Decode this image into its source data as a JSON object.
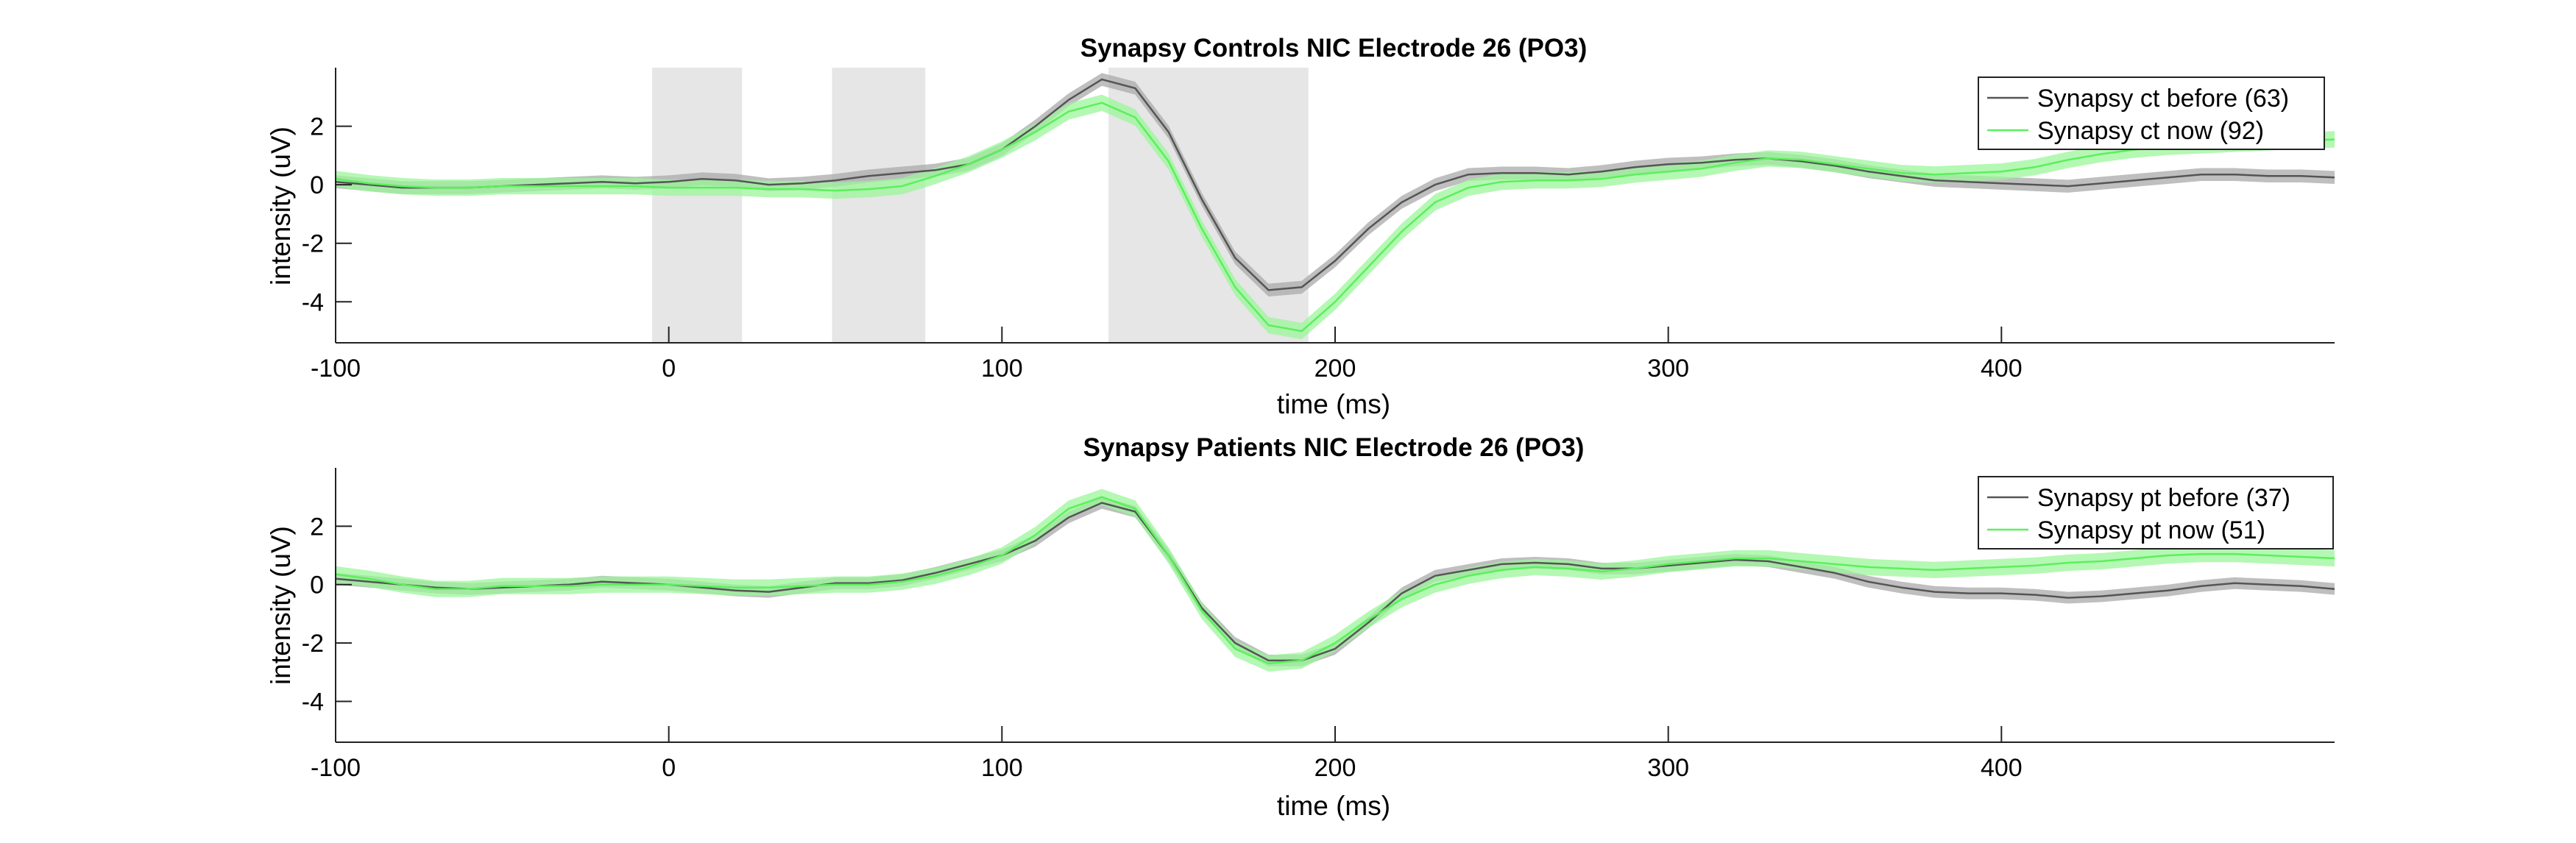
{
  "chart_data": [
    {
      "type": "line",
      "title": "Synapsy Controls NIC Electrode 26 (PO3)",
      "xlabel": "time (ms)",
      "ylabel": "intensity (uV)",
      "xlim": [
        -100,
        500
      ],
      "ylim": [
        -5.4,
        4
      ],
      "xticks": [
        -100,
        0,
        100,
        200,
        300,
        400
      ],
      "yticks": [
        -4,
        -2,
        0,
        2
      ],
      "grid": false,
      "legend_position": "top-right",
      "shaded_regions": [
        [
          -5,
          22
        ],
        [
          49,
          77
        ],
        [
          132,
          192
        ]
      ],
      "colors": {
        "before": "#555555",
        "now": "#5bf05b",
        "before_band": "#a9a9a9",
        "now_band": "#9bf59b",
        "region": "#e6e6e6"
      },
      "x": [
        -100,
        -90,
        -80,
        -70,
        -60,
        -50,
        -40,
        -30,
        -20,
        -10,
        0,
        10,
        20,
        30,
        40,
        50,
        60,
        70,
        80,
        90,
        100,
        110,
        120,
        130,
        140,
        150,
        160,
        170,
        180,
        190,
        200,
        210,
        220,
        230,
        240,
        250,
        260,
        270,
        280,
        290,
        300,
        310,
        320,
        330,
        340,
        350,
        360,
        370,
        380,
        390,
        400,
        410,
        420,
        430,
        440,
        450,
        460,
        470,
        480,
        490,
        500
      ],
      "series": [
        {
          "name": "Synapsy ct before (63)",
          "values": [
            0.1,
            0.0,
            -0.1,
            -0.1,
            -0.1,
            -0.05,
            0.0,
            0.05,
            0.1,
            0.05,
            0.1,
            0.2,
            0.15,
            0.0,
            0.05,
            0.15,
            0.3,
            0.4,
            0.5,
            0.7,
            1.2,
            2.0,
            2.9,
            3.6,
            3.3,
            1.8,
            -0.5,
            -2.5,
            -3.6,
            -3.5,
            -2.6,
            -1.5,
            -0.6,
            0.0,
            0.35,
            0.4,
            0.4,
            0.35,
            0.45,
            0.6,
            0.7,
            0.75,
            0.85,
            0.9,
            0.8,
            0.65,
            0.45,
            0.3,
            0.15,
            0.1,
            0.05,
            0.0,
            -0.05,
            0.05,
            0.15,
            0.25,
            0.35,
            0.35,
            0.3,
            0.3,
            0.25
          ],
          "band": 0.22
        },
        {
          "name": "Synapsy ct now (92)",
          "values": [
            0.2,
            0.05,
            -0.05,
            -0.1,
            -0.1,
            -0.05,
            -0.05,
            -0.05,
            -0.05,
            -0.05,
            -0.1,
            -0.1,
            -0.1,
            -0.15,
            -0.15,
            -0.2,
            -0.15,
            -0.05,
            0.3,
            0.7,
            1.2,
            1.8,
            2.5,
            2.8,
            2.3,
            0.8,
            -1.5,
            -3.5,
            -4.8,
            -5.0,
            -4.0,
            -2.8,
            -1.6,
            -0.6,
            -0.1,
            0.1,
            0.15,
            0.15,
            0.2,
            0.35,
            0.45,
            0.55,
            0.75,
            0.9,
            0.85,
            0.7,
            0.55,
            0.4,
            0.35,
            0.4,
            0.45,
            0.6,
            0.85,
            1.05,
            1.2,
            1.3,
            1.35,
            1.4,
            1.45,
            1.5,
            1.55
          ],
          "band": 0.28
        }
      ]
    },
    {
      "type": "line",
      "title": "Synapsy Patients NIC Electrode 26 (PO3)",
      "xlabel": "time (ms)",
      "ylabel": "intensity (uV)",
      "xlim": [
        -100,
        500
      ],
      "ylim": [
        -5.4,
        4
      ],
      "xticks": [
        -100,
        0,
        100,
        200,
        300,
        400
      ],
      "yticks": [
        -4,
        -2,
        0,
        2
      ],
      "grid": false,
      "legend_position": "top-right",
      "shaded_regions": [],
      "colors": {
        "before": "#555555",
        "now": "#5bf05b",
        "before_band": "#a9a9a9",
        "now_band": "#9bf59b"
      },
      "x": [
        -100,
        -90,
        -80,
        -70,
        -60,
        -50,
        -40,
        -30,
        -20,
        -10,
        0,
        10,
        20,
        30,
        40,
        50,
        60,
        70,
        80,
        90,
        100,
        110,
        120,
        130,
        140,
        150,
        160,
        170,
        180,
        190,
        200,
        210,
        220,
        230,
        240,
        250,
        260,
        270,
        280,
        290,
        300,
        310,
        320,
        330,
        340,
        350,
        360,
        370,
        380,
        390,
        400,
        410,
        420,
        430,
        440,
        450,
        460,
        470,
        480,
        490,
        500
      ],
      "series": [
        {
          "name": "Synapsy pt before (37)",
          "values": [
            0.2,
            0.1,
            0.0,
            -0.1,
            -0.15,
            -0.1,
            -0.05,
            0.0,
            0.1,
            0.05,
            0.0,
            -0.1,
            -0.2,
            -0.25,
            -0.1,
            0.05,
            0.05,
            0.15,
            0.4,
            0.7,
            1.0,
            1.5,
            2.3,
            2.8,
            2.5,
            1.0,
            -0.8,
            -2.0,
            -2.6,
            -2.6,
            -2.2,
            -1.3,
            -0.3,
            0.3,
            0.5,
            0.7,
            0.75,
            0.7,
            0.55,
            0.55,
            0.65,
            0.75,
            0.85,
            0.8,
            0.6,
            0.4,
            0.1,
            -0.1,
            -0.25,
            -0.3,
            -0.3,
            -0.35,
            -0.45,
            -0.4,
            -0.3,
            -0.2,
            -0.05,
            0.05,
            0.0,
            -0.05,
            -0.15
          ],
          "band": 0.2
        },
        {
          "name": "Synapsy pt now (51)",
          "values": [
            0.35,
            0.2,
            0.0,
            -0.15,
            -0.15,
            -0.05,
            -0.05,
            -0.05,
            0.0,
            0.0,
            0.0,
            -0.05,
            -0.1,
            -0.1,
            -0.05,
            0.0,
            0.0,
            0.1,
            0.3,
            0.6,
            1.0,
            1.7,
            2.6,
            3.0,
            2.6,
            1.0,
            -0.9,
            -2.2,
            -2.7,
            -2.6,
            -2.0,
            -1.2,
            -0.5,
            0.0,
            0.3,
            0.5,
            0.6,
            0.55,
            0.45,
            0.55,
            0.7,
            0.8,
            0.9,
            0.9,
            0.8,
            0.7,
            0.6,
            0.55,
            0.5,
            0.55,
            0.6,
            0.65,
            0.75,
            0.8,
            0.9,
            1.0,
            1.05,
            1.05,
            1.0,
            0.95,
            0.9
          ],
          "band": 0.28
        }
      ]
    }
  ]
}
